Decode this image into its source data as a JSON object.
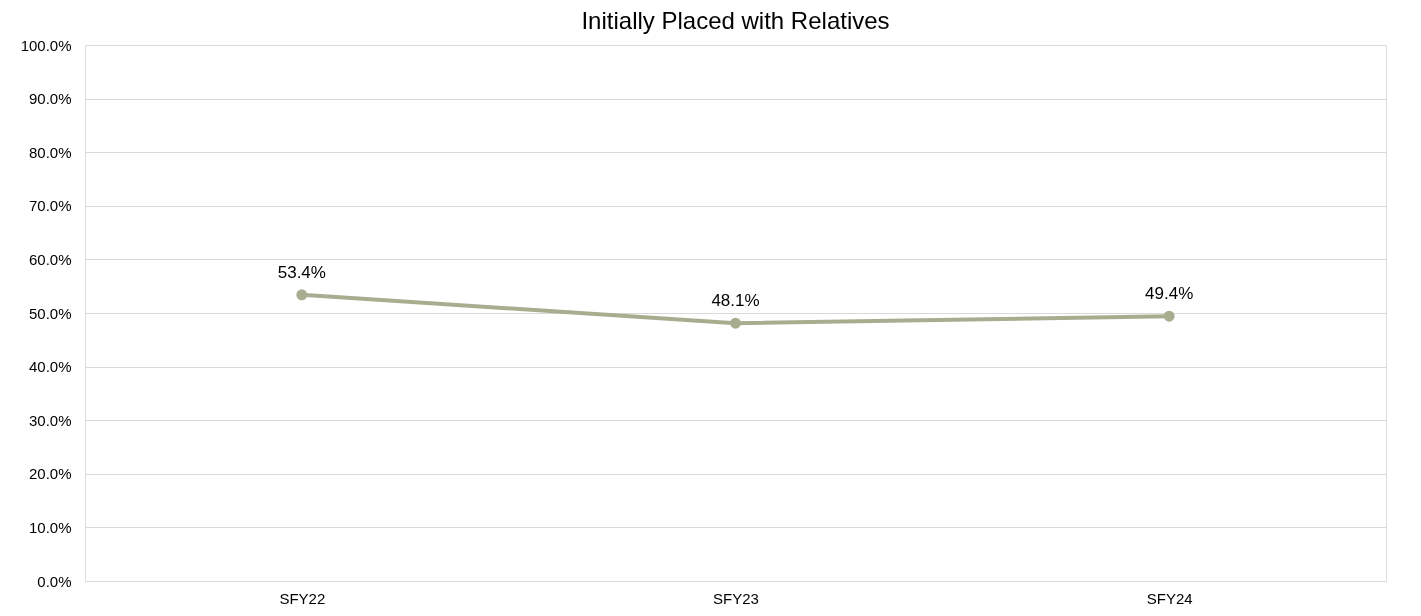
{
  "chart_data": {
    "type": "line",
    "title": "Initially Placed with Relatives",
    "categories": [
      "SFY22",
      "SFY23",
      "SFY24"
    ],
    "series": [
      {
        "color": "#a8ad90",
        "values": [
          53.4,
          48.1,
          49.4
        ]
      }
    ],
    "value_labels": [
      "53.4%",
      "48.1%",
      "49.4%"
    ],
    "ylim": [
      0,
      100
    ],
    "yticks": [
      {
        "value": 0,
        "label": "0.0%"
      },
      {
        "value": 10,
        "label": "10.0%"
      },
      {
        "value": 20,
        "label": "20.0%"
      },
      {
        "value": 30,
        "label": "30.0%"
      },
      {
        "value": 40,
        "label": "40.0%"
      },
      {
        "value": 50,
        "label": "50.0%"
      },
      {
        "value": 60,
        "label": "60.0%"
      },
      {
        "value": 70,
        "label": "70.0%"
      },
      {
        "value": 80,
        "label": "80.0%"
      },
      {
        "value": 90,
        "label": "90.0%"
      },
      {
        "value": 100,
        "label": "100.0%"
      }
    ],
    "grid": "y",
    "marker": "circle",
    "line_style": "solid"
  }
}
